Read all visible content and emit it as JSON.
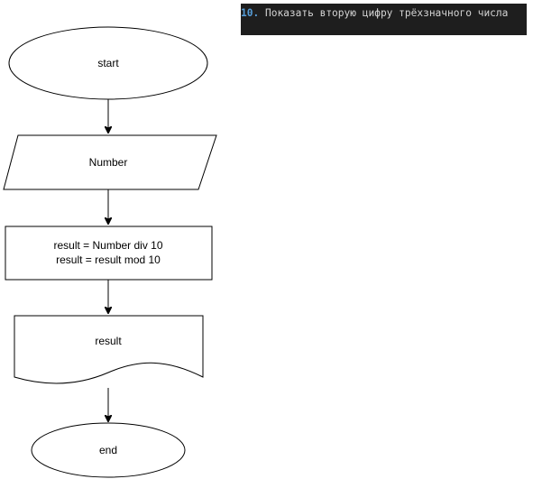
{
  "task": {
    "number": "10.",
    "title": "Показать вторую цифру трёхзначного числа"
  },
  "flowchart": {
    "start_label": "start",
    "input_label": "Number",
    "process_line1": "result = Number div 10",
    "process_line2": "result = result mod 10",
    "output_label": "result",
    "end_label": "end"
  },
  "colors": {
    "banner_background": "#1e1e1e",
    "banner_number": "#569cd6",
    "banner_text": "#d4d4d4",
    "stroke": "#000000"
  }
}
